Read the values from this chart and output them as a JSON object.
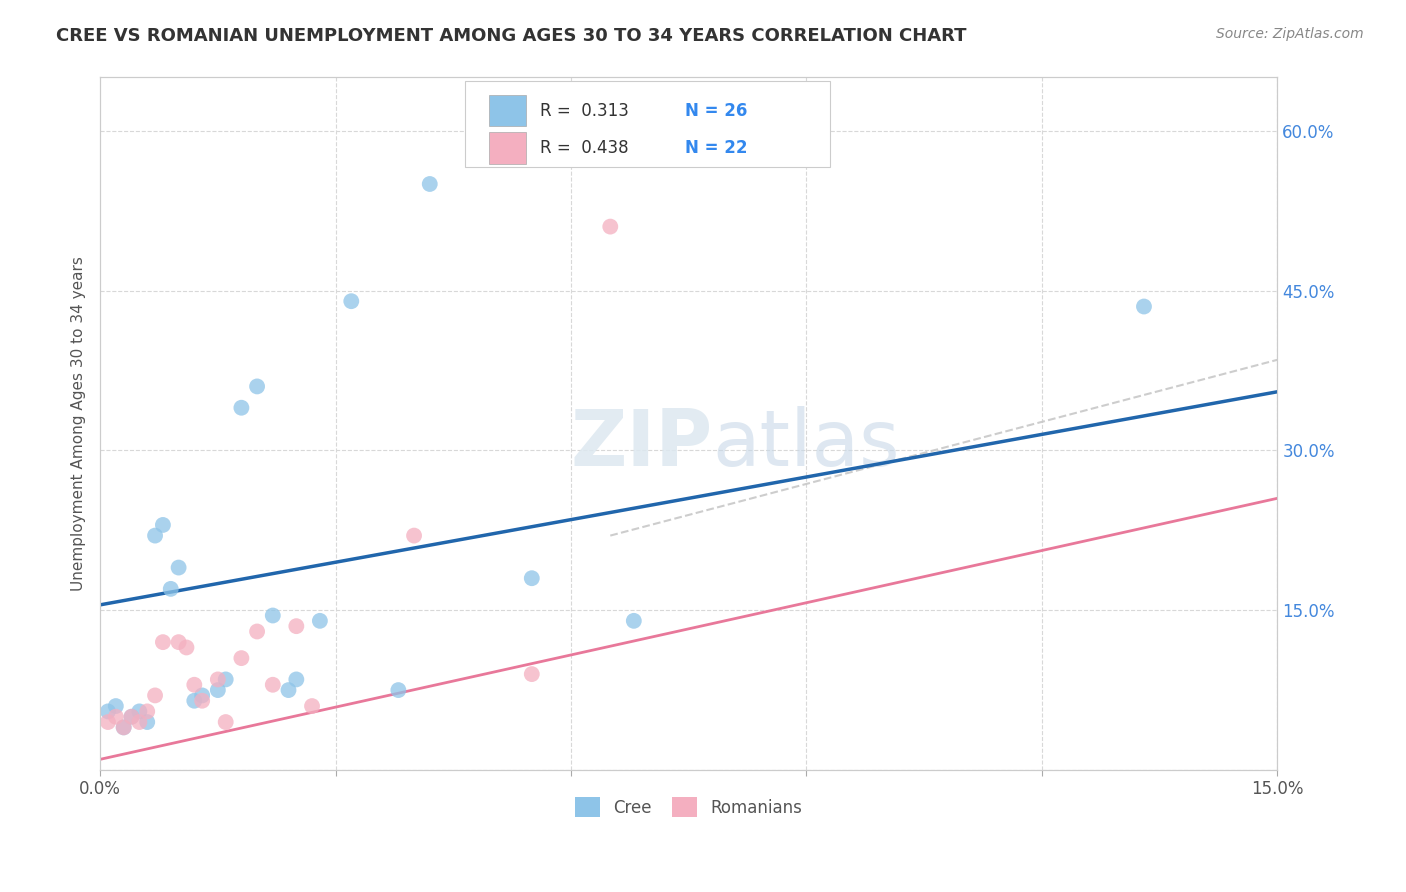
{
  "title": "CREE VS ROMANIAN UNEMPLOYMENT AMONG AGES 30 TO 34 YEARS CORRELATION CHART",
  "source": "Source: ZipAtlas.com",
  "ylabel": "Unemployment Among Ages 30 to 34 years",
  "xlim": [
    0.0,
    0.15
  ],
  "ylim": [
    0.0,
    0.65
  ],
  "cree_color": "#8ec4e8",
  "romanian_color": "#f4afc0",
  "cree_line_color": "#2166ac",
  "romanian_line_color": "#e8789a",
  "trend_dash_color": "#c8c8c8",
  "background_color": "#ffffff",
  "grid_color": "#d8d8d8",
  "watermark_text": "ZIPatlas",
  "cree_points_x": [
    0.001,
    0.002,
    0.003,
    0.004,
    0.005,
    0.006,
    0.007,
    0.008,
    0.009,
    0.01,
    0.012,
    0.013,
    0.015,
    0.016,
    0.018,
    0.02,
    0.022,
    0.024,
    0.025,
    0.028,
    0.032,
    0.038,
    0.042,
    0.055,
    0.068,
    0.133
  ],
  "cree_points_y": [
    0.055,
    0.06,
    0.04,
    0.05,
    0.055,
    0.045,
    0.22,
    0.23,
    0.17,
    0.19,
    0.065,
    0.07,
    0.075,
    0.085,
    0.34,
    0.36,
    0.145,
    0.075,
    0.085,
    0.14,
    0.44,
    0.075,
    0.55,
    0.18,
    0.14,
    0.435
  ],
  "romanian_points_x": [
    0.001,
    0.002,
    0.003,
    0.004,
    0.005,
    0.006,
    0.007,
    0.008,
    0.01,
    0.011,
    0.012,
    0.013,
    0.015,
    0.016,
    0.018,
    0.02,
    0.022,
    0.025,
    0.027,
    0.04,
    0.055,
    0.065
  ],
  "romanian_points_y": [
    0.045,
    0.05,
    0.04,
    0.05,
    0.045,
    0.055,
    0.07,
    0.12,
    0.12,
    0.115,
    0.08,
    0.065,
    0.085,
    0.045,
    0.105,
    0.13,
    0.08,
    0.135,
    0.06,
    0.22,
    0.09,
    0.51
  ],
  "cree_trend": [
    0.0,
    0.15,
    0.155,
    0.355
  ],
  "romanian_trend": [
    0.0,
    0.15,
    0.01,
    0.255
  ],
  "dash_trend": [
    0.065,
    0.15,
    0.22,
    0.385
  ],
  "ytick_positions": [
    0.0,
    0.15,
    0.3,
    0.45,
    0.6
  ],
  "ytick_labels": [
    "",
    "15.0%",
    "30.0%",
    "45.0%",
    "60.0%"
  ],
  "xtick_positions": [
    0.0,
    0.03,
    0.06,
    0.09,
    0.12,
    0.15
  ],
  "xtick_labels": [
    "0.0%",
    "",
    "",
    "",
    "",
    "15.0%"
  ]
}
